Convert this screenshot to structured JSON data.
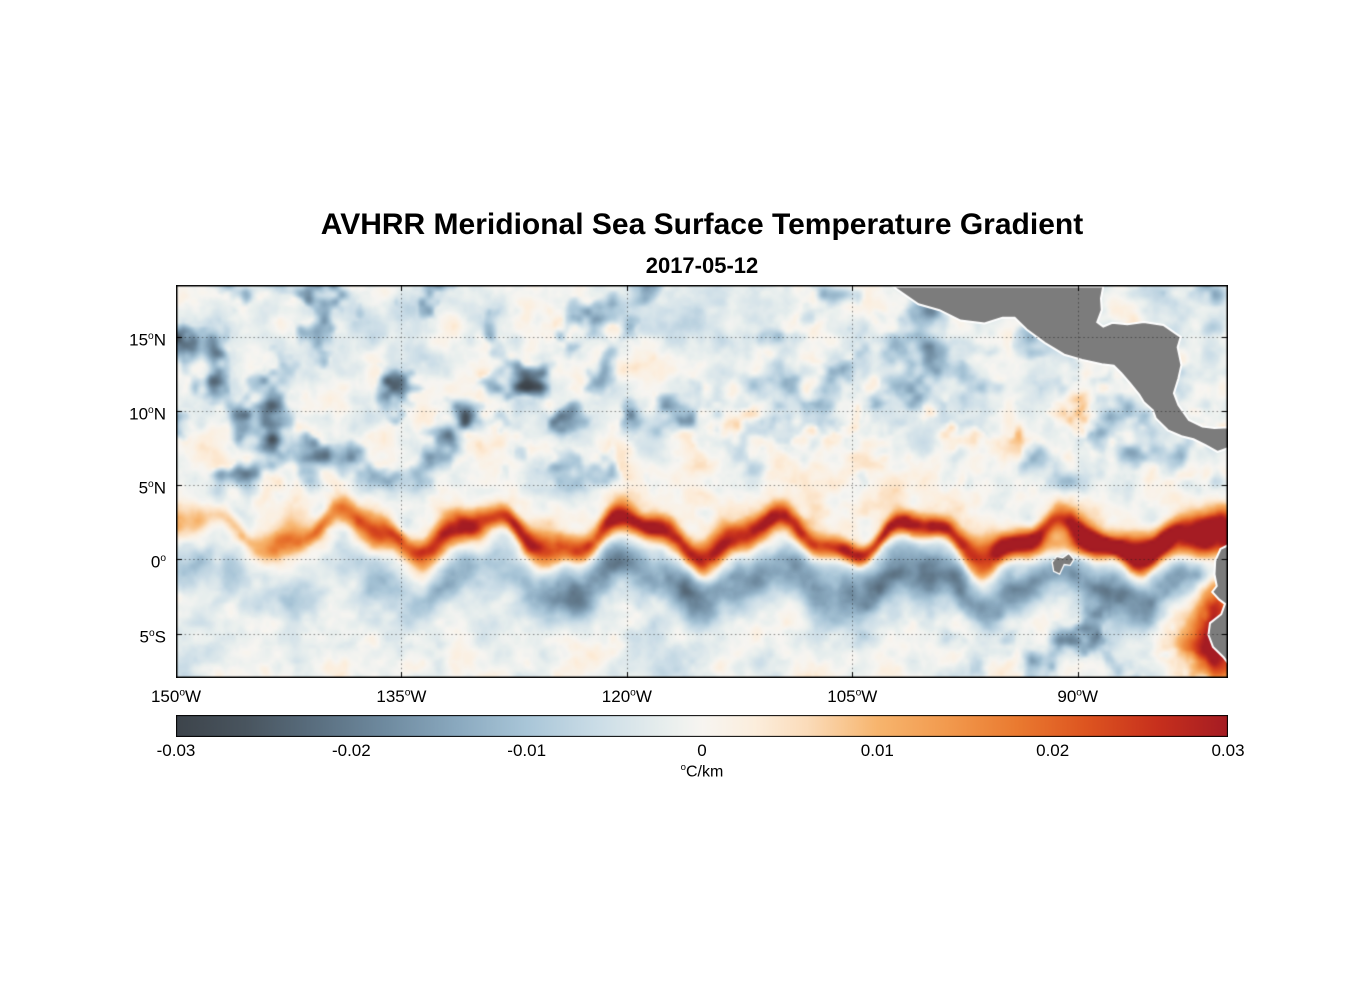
{
  "chart_data": {
    "type": "heatmap",
    "title": "AVHRR Meridional Sea Surface Temperature Gradient",
    "subtitle_date": "2017-05-12",
    "extent": {
      "lon_west_degW": 150,
      "lon_east_degW": 80,
      "lat_north": 18.5,
      "lat_south": -8.0
    },
    "lat_ticks": [
      {
        "deg": "15",
        "sup": "o",
        "hem": "N",
        "lat": 15
      },
      {
        "deg": "10",
        "sup": "o",
        "hem": "N",
        "lat": 10
      },
      {
        "deg": "5",
        "sup": "o",
        "hem": "N",
        "lat": 5
      },
      {
        "deg": "0",
        "sup": "o",
        "hem": "",
        "lat": 0
      },
      {
        "deg": "5",
        "sup": "o",
        "hem": "S",
        "lat": -5
      }
    ],
    "lon_ticks": [
      {
        "deg": "150",
        "sup": "o",
        "hem": "W",
        "degW": 150
      },
      {
        "deg": "135",
        "sup": "o",
        "hem": "W",
        "degW": 135
      },
      {
        "deg": "120",
        "sup": "o",
        "hem": "W",
        "degW": 120
      },
      {
        "deg": "105",
        "sup": "o",
        "hem": "W",
        "degW": 105
      },
      {
        "deg": "90",
        "sup": "o",
        "hem": "W",
        "degW": 90
      }
    ],
    "grid": {
      "lats": [
        15,
        10,
        5,
        0,
        -5
      ],
      "lonsW": [
        135,
        120,
        105,
        90
      ],
      "color": "rgba(25,25,25,0.5)",
      "dash": [
        1.5,
        2.8
      ]
    },
    "colorbar": {
      "min": -0.03,
      "max": 0.03,
      "tick_values": [
        -0.03,
        -0.02,
        -0.01,
        0,
        0.01,
        0.02,
        0.03
      ],
      "tick_labels": [
        "-0.03",
        "-0.02",
        "-0.01",
        "0",
        "0.01",
        "0.02",
        "0.03"
      ],
      "unit_sup": "o",
      "unit_text": "C/km"
    },
    "colormap": [
      [
        -0.03,
        "#3d444b"
      ],
      [
        -0.026,
        "#49555f"
      ],
      [
        -0.022,
        "#5a6f80"
      ],
      [
        -0.018,
        "#6f8ba0"
      ],
      [
        -0.014,
        "#8aa9bf"
      ],
      [
        -0.01,
        "#a9c6d8"
      ],
      [
        -0.006,
        "#cbdde7"
      ],
      [
        -0.002,
        "#e9efee"
      ],
      [
        0.0,
        "#f7f5f1"
      ],
      [
        0.003,
        "#fceedd"
      ],
      [
        0.006,
        "#fbdcba"
      ],
      [
        0.01,
        "#f7b56e"
      ],
      [
        0.014,
        "#f29a4e"
      ],
      [
        0.018,
        "#ea7a30"
      ],
      [
        0.022,
        "#dd5420"
      ],
      [
        0.026,
        "#c7301d"
      ],
      [
        0.03,
        "#a51c23"
      ]
    ],
    "features": [
      {
        "name": "north-equatorial-front",
        "sign": "positive",
        "approx_value_C_per_km": "+0.02 to +0.03",
        "description": "Strong warm meridional SST gradient band meandering along 0.5-3.5N across the basin with tropical-instability-wave cusps, intensifying east of 130W and reaching the coast near 1N"
      },
      {
        "name": "south-equatorial-band",
        "sign": "negative",
        "approx_value_C_per_km": "-0.01 to -0.02",
        "description": "Blue negative-gradient band along 0.5-3S just south of the equatorial front, meandering with the waves"
      },
      {
        "name": "northern-mesoscale-patches",
        "sign": "negative",
        "description": "Scattered dark blue eddy patches between 6N and 18N, densest northwest of 125W"
      },
      {
        "name": "itcz-front-patches",
        "sign": "positive",
        "description": "Patchy orange gradients 7-11N east of 110W toward Central America"
      },
      {
        "name": "peru-ecuador-coastal-front",
        "sign": "positive",
        "approx_value_C_per_km": "+0.025 to +0.03",
        "description": "Intense red gradients along the Ecuador/Peru coast from the equator to 8S near 80-84W"
      }
    ],
    "field_model": {
      "bias": {
        "base": -0.0015,
        "warm_amp": 0.0028,
        "warm_lat": 2.2,
        "warm_sigma": 4.2
      },
      "noise": [
        {
          "amp": 0.0065,
          "scale": 0.38
        },
        {
          "amp": 0.004,
          "scale": 0.95
        }
      ],
      "north_blobs": {
        "amp": 0.03,
        "thresh": 0.52,
        "scale": 0.42,
        "lat_ramp": [
          3.5,
          6.5
        ],
        "west_boost": [
          112,
          128,
          0.7,
          0.5
        ]
      },
      "itcz_patches": {
        "amp": 0.026,
        "thresh": 0.5,
        "scale": 0.5,
        "lat_center": 9.3,
        "lat_sigma": 2.2,
        "east_ramp": [
          30,
          44
        ]
      },
      "front": {
        "lat0": 1.9,
        "drift": -0.01,
        "w1_amp": 1.15,
        "w1_k": 0.66,
        "w1_ph": 0.4,
        "w2_amp": 0.35,
        "w2_k": 1.7,
        "w2_ph": 2.0,
        "width": 0.95,
        "width_var": 0.4,
        "amp_min": 0.012,
        "amp_max": 0.034,
        "ramp": [
          2,
          20
        ],
        "east_boost": {
          "amp": 0.02,
          "lat": 0.9,
          "sigma": 0.95,
          "ramp": [
            50,
            62
          ]
        }
      },
      "south_band": {
        "offset": -3.1,
        "sigma": 1.7,
        "amp_min": 0.009,
        "amp_max": 0.02,
        "ramp": [
          10,
          30
        ]
      },
      "se_blobs": {
        "amp": 0.02,
        "thresh": 0.5,
        "scale": 0.55,
        "east_ramp": [
          46,
          58
        ],
        "south_ramp": [
          1.5,
          4.5
        ]
      },
      "coastal_warm": [
        {
          "lonW": 80.6,
          "lat": -3.8,
          "slon": 1.6,
          "slat": 3.2,
          "amp": 0.03
        },
        {
          "lonW": 81.5,
          "lat": -6.8,
          "slon": 2.2,
          "slat": 2.0,
          "amp": 0.024
        }
      ]
    },
    "land": {
      "fill": "#7c7c7c",
      "outline": "#ffffff",
      "polygons": {
        "central_america": [
          [
            102.3,
            18.4
          ],
          [
            100.6,
            17.2
          ],
          [
            99.2,
            16.8
          ],
          [
            97.8,
            16.1
          ],
          [
            96.2,
            15.9
          ],
          [
            95.0,
            16.3
          ],
          [
            94.2,
            16.3
          ],
          [
            93.4,
            15.5
          ],
          [
            92.2,
            14.6
          ],
          [
            90.9,
            13.8
          ],
          [
            89.7,
            13.45
          ],
          [
            88.4,
            13.15
          ],
          [
            87.6,
            13.05
          ],
          [
            87.1,
            12.55
          ],
          [
            86.5,
            11.85
          ],
          [
            85.9,
            11.1
          ],
          [
            85.6,
            10.6
          ],
          [
            85.0,
            10.05
          ],
          [
            84.8,
            9.5
          ],
          [
            84.0,
            8.7
          ],
          [
            83.1,
            8.3
          ],
          [
            82.3,
            8.1
          ],
          [
            81.5,
            7.7
          ],
          [
            80.7,
            7.25
          ],
          [
            80.0,
            7.5
          ],
          [
            80.0,
            8.9
          ],
          [
            80.9,
            8.85
          ],
          [
            81.7,
            8.95
          ],
          [
            82.6,
            9.4
          ],
          [
            83.3,
            10.4
          ],
          [
            83.6,
            11.2
          ],
          [
            83.3,
            12.2
          ],
          [
            83.1,
            13.1
          ],
          [
            83.35,
            14.3
          ],
          [
            83.15,
            15.0
          ],
          [
            84.3,
            15.8
          ],
          [
            85.6,
            16.0
          ],
          [
            86.7,
            15.85
          ],
          [
            87.7,
            15.95
          ],
          [
            88.3,
            15.7
          ],
          [
            88.7,
            16.0
          ],
          [
            88.4,
            16.8
          ],
          [
            88.45,
            17.6
          ],
          [
            88.3,
            18.4
          ]
        ],
        "south_america": [
          [
            80.0,
            0.95
          ],
          [
            80.5,
            0.7
          ],
          [
            80.85,
            -0.1
          ],
          [
            80.9,
            -1.0
          ],
          [
            80.75,
            -1.8
          ],
          [
            81.05,
            -2.2
          ],
          [
            80.6,
            -2.7
          ],
          [
            80.2,
            -3.0
          ],
          [
            80.45,
            -3.7
          ],
          [
            81.2,
            -4.3
          ],
          [
            81.3,
            -5.1
          ],
          [
            81.0,
            -5.9
          ],
          [
            80.3,
            -6.6
          ],
          [
            80.0,
            -7.0
          ]
        ],
        "galapagos": [
          [
            91.7,
            -0.2
          ],
          [
            91.4,
            0.2
          ],
          [
            91.0,
            0.1
          ],
          [
            90.6,
            0.4
          ],
          [
            90.25,
            0.0
          ],
          [
            90.5,
            -0.4
          ],
          [
            90.9,
            -0.35
          ],
          [
            91.2,
            -1.0
          ],
          [
            91.6,
            -0.8
          ]
        ]
      }
    },
    "seed": 7.31
  }
}
